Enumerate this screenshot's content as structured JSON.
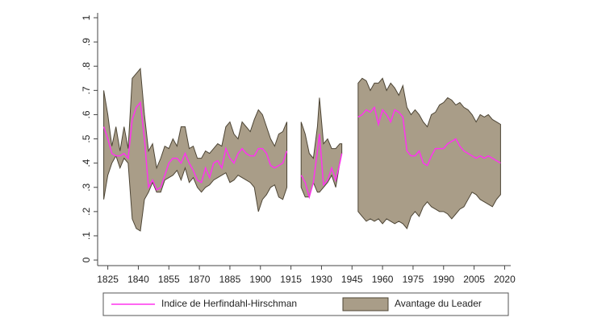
{
  "chart_data": {
    "type": "band-line",
    "x": [
      1823,
      1825,
      1827,
      1829,
      1831,
      1833,
      1835,
      1837,
      1839,
      1841,
      1843,
      1845,
      1847,
      1849,
      1851,
      1853,
      1855,
      1857,
      1859,
      1861,
      1863,
      1865,
      1867,
      1869,
      1871,
      1873,
      1875,
      1877,
      1879,
      1881,
      1883,
      1885,
      1887,
      1889,
      1891,
      1893,
      1895,
      1897,
      1899,
      1901,
      1903,
      1905,
      1907,
      1909,
      1911,
      1913,
      1917,
      1920,
      1922,
      1924,
      1926,
      1928,
      1929,
      1931,
      1933,
      1935,
      1937,
      1939,
      1940,
      1944,
      1948,
      1950,
      1952,
      1954,
      1956,
      1958,
      1960,
      1962,
      1964,
      1966,
      1968,
      1970,
      1972,
      1974,
      1976,
      1978,
      1980,
      1982,
      1984,
      1986,
      1988,
      1990,
      1992,
      1994,
      1996,
      1998,
      2000,
      2002,
      2004,
      2006,
      2008,
      2010,
      2012,
      2014,
      2016,
      2018
    ],
    "series": [
      {
        "name": "Indice de Herfindahl-Hirschman",
        "color": "#ff33ee",
        "values": [
          0.55,
          0.5,
          0.44,
          0.43,
          0.43,
          0.44,
          0.42,
          0.58,
          0.63,
          0.65,
          0.5,
          0.3,
          0.33,
          0.29,
          0.3,
          0.35,
          0.4,
          0.42,
          0.42,
          0.4,
          0.44,
          0.4,
          0.37,
          0.33,
          0.32,
          0.38,
          0.34,
          0.4,
          0.41,
          0.38,
          0.46,
          0.42,
          0.4,
          0.44,
          0.46,
          0.44,
          0.43,
          0.43,
          0.46,
          0.46,
          0.44,
          0.39,
          0.38,
          0.39,
          0.4,
          0.45,
          null,
          0.35,
          0.32,
          0.26,
          0.32,
          0.45,
          0.52,
          0.31,
          0.33,
          0.38,
          0.33,
          0.4,
          0.44,
          null,
          0.59,
          0.6,
          0.62,
          0.61,
          0.63,
          0.56,
          0.62,
          0.6,
          0.57,
          0.62,
          0.61,
          0.59,
          0.45,
          0.43,
          0.43,
          0.45,
          0.4,
          0.39,
          0.43,
          0.46,
          0.46,
          0.46,
          0.48,
          0.49,
          0.5,
          0.47,
          0.45,
          0.44,
          0.43,
          0.42,
          0.43,
          0.42,
          0.43,
          0.42,
          0.41,
          0.4
        ]
      },
      {
        "name": "Avantage du Leader",
        "color": "#a99d88",
        "lower": [
          0.25,
          0.35,
          0.4,
          0.43,
          0.38,
          0.42,
          0.4,
          0.17,
          0.13,
          0.12,
          0.25,
          0.28,
          0.32,
          0.28,
          0.28,
          0.33,
          0.34,
          0.35,
          0.37,
          0.33,
          0.38,
          0.32,
          0.34,
          0.3,
          0.28,
          0.3,
          0.31,
          0.33,
          0.34,
          0.35,
          0.36,
          0.32,
          0.33,
          0.35,
          0.34,
          0.33,
          0.32,
          0.3,
          0.2,
          0.25,
          0.27,
          0.3,
          0.31,
          0.26,
          0.25,
          0.3,
          null,
          0.3,
          0.26,
          0.26,
          0.32,
          0.28,
          0.28,
          0.3,
          0.32,
          0.35,
          0.3,
          0.4,
          0.44,
          null,
          0.2,
          0.18,
          0.16,
          0.17,
          0.16,
          0.17,
          0.15,
          0.17,
          0.16,
          0.15,
          0.16,
          0.15,
          0.13,
          0.18,
          0.2,
          0.18,
          0.22,
          0.24,
          0.22,
          0.21,
          0.2,
          0.2,
          0.19,
          0.17,
          0.19,
          0.21,
          0.22,
          0.25,
          0.28,
          0.27,
          0.25,
          0.24,
          0.23,
          0.22,
          0.25,
          0.27
        ],
        "upper": [
          0.7,
          0.6,
          0.47,
          0.55,
          0.45,
          0.55,
          0.46,
          0.75,
          0.77,
          0.79,
          0.6,
          0.45,
          0.48,
          0.38,
          0.42,
          0.47,
          0.46,
          0.5,
          0.47,
          0.55,
          0.55,
          0.46,
          0.47,
          0.42,
          0.42,
          0.45,
          0.44,
          0.46,
          0.48,
          0.47,
          0.55,
          0.57,
          0.52,
          0.5,
          0.57,
          0.55,
          0.53,
          0.58,
          0.62,
          0.6,
          0.55,
          0.5,
          0.47,
          0.52,
          0.53,
          0.57,
          null,
          0.57,
          0.52,
          0.44,
          0.42,
          0.55,
          0.67,
          0.48,
          0.5,
          0.46,
          0.46,
          0.48,
          0.48,
          null,
          0.73,
          0.75,
          0.74,
          0.7,
          0.73,
          0.73,
          0.75,
          0.7,
          0.73,
          0.71,
          0.68,
          0.72,
          0.63,
          0.6,
          0.62,
          0.6,
          0.57,
          0.55,
          0.6,
          0.61,
          0.64,
          0.65,
          0.67,
          0.66,
          0.64,
          0.65,
          0.63,
          0.62,
          0.6,
          0.57,
          0.6,
          0.59,
          0.6,
          0.58,
          0.57,
          0.56
        ]
      }
    ],
    "xlim": [
      1820,
      2023
    ],
    "xticks": [
      1825,
      1840,
      1855,
      1870,
      1885,
      1900,
      1915,
      1930,
      1945,
      1960,
      1975,
      1990,
      2005,
      2020
    ],
    "ylim": [
      -0.023,
      1.02
    ],
    "yticks": [
      0,
      {
        "value": 0.1,
        "label": ".1"
      },
      {
        "value": 0.2,
        "label": ".2"
      },
      {
        "value": 0.3,
        "label": ".3"
      },
      {
        "value": 0.4,
        "label": ".4"
      },
      {
        "value": 0.5,
        "label": ".5"
      },
      {
        "value": 0.6,
        "label": ".6"
      },
      {
        "value": 0.7,
        "label": ".7"
      },
      {
        "value": 0.8,
        "label": ".8"
      },
      {
        "value": 0.9,
        "label": ".9"
      },
      1
    ],
    "grid": false,
    "legend": "bottom"
  }
}
